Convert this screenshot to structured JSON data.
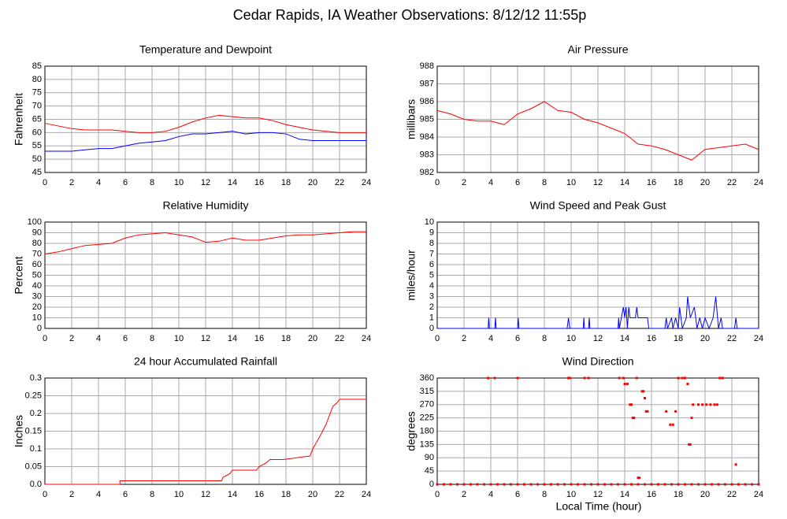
{
  "title": "Cedar Rapids, IA Weather Observations: 8/12/12 11:55p",
  "xlabel": "Local Time (hour)",
  "chart_data": [
    {
      "type": "line",
      "title": "Temperature and Dewpoint",
      "ylabel": "Fahrenheit",
      "xlim": [
        0,
        24
      ],
      "xticks": [
        0,
        2,
        4,
        6,
        8,
        10,
        12,
        14,
        16,
        18,
        20,
        22,
        24
      ],
      "ylim": [
        45,
        85
      ],
      "yticks": [
        45,
        50,
        55,
        60,
        65,
        70,
        75,
        80,
        85
      ],
      "grid": true,
      "x": [
        0,
        1,
        2,
        3,
        4,
        5,
        6,
        7,
        8,
        9,
        10,
        11,
        12,
        13,
        14,
        15,
        16,
        17,
        18,
        19,
        20,
        21,
        22,
        23,
        24
      ],
      "series": [
        {
          "color": "#ff0000",
          "values": [
            63.5,
            62.5,
            61.5,
            61,
            61,
            61,
            60.5,
            60,
            60,
            60.5,
            62,
            64,
            65.5,
            66.5,
            66,
            65.5,
            65.5,
            64.5,
            63,
            62,
            61,
            60.5,
            60,
            60,
            60
          ]
        },
        {
          "color": "#0000ff",
          "values": [
            53,
            53,
            53,
            53.5,
            54,
            54,
            55,
            56,
            56.5,
            57,
            58.5,
            59.5,
            59.5,
            60,
            60.5,
            59.5,
            60,
            60,
            59.5,
            57.5,
            57,
            57,
            57,
            57,
            57
          ]
        }
      ]
    },
    {
      "type": "line",
      "title": "Air Pressure",
      "ylabel": "millibars",
      "xlim": [
        0,
        24
      ],
      "xticks": [
        0,
        2,
        4,
        6,
        8,
        10,
        12,
        14,
        16,
        18,
        20,
        22,
        24
      ],
      "ylim": [
        982,
        988
      ],
      "yticks": [
        982,
        983,
        984,
        985,
        986,
        987,
        988
      ],
      "grid": true,
      "x": [
        0,
        1,
        2,
        3,
        4,
        5,
        6,
        7,
        8,
        9,
        10,
        11,
        12,
        13,
        14,
        15,
        16,
        17,
        18,
        19,
        20,
        21,
        22,
        23,
        24
      ],
      "series": [
        {
          "color": "#ff0000",
          "values": [
            985.5,
            985.3,
            985,
            984.9,
            984.9,
            984.7,
            985.3,
            985.6,
            986,
            985.5,
            985.4,
            985,
            984.8,
            984.5,
            984.2,
            983.6,
            983.5,
            983.3,
            983,
            982.7,
            983.3,
            983.4,
            983.5,
            983.6,
            983.3
          ]
        }
      ]
    },
    {
      "type": "line",
      "title": "Relative Humidity",
      "ylabel": "Percent",
      "xlim": [
        0,
        24
      ],
      "xticks": [
        0,
        2,
        4,
        6,
        8,
        10,
        12,
        14,
        16,
        18,
        20,
        22,
        24
      ],
      "ylim": [
        0,
        100
      ],
      "yticks": [
        0,
        10,
        20,
        30,
        40,
        50,
        60,
        70,
        80,
        90,
        100
      ],
      "grid": true,
      "x": [
        0,
        1,
        2,
        3,
        4,
        5,
        6,
        7,
        8,
        9,
        10,
        11,
        12,
        13,
        14,
        15,
        16,
        17,
        18,
        19,
        20,
        21,
        22,
        23,
        24
      ],
      "series": [
        {
          "color": "#ff0000",
          "values": [
            70,
            72,
            75,
            78,
            79,
            80,
            85,
            88,
            89,
            90,
            88,
            86,
            81,
            82,
            85,
            83,
            83,
            85,
            87,
            88,
            88,
            89,
            90,
            91,
            91
          ]
        }
      ]
    },
    {
      "type": "line",
      "title": "Wind Speed and Peak Gust",
      "ylabel": "miles/hour",
      "xlim": [
        0,
        24
      ],
      "xticks": [
        0,
        2,
        4,
        6,
        8,
        10,
        12,
        14,
        16,
        18,
        20,
        22,
        24
      ],
      "ylim": [
        0,
        10
      ],
      "yticks": [
        0,
        1,
        2,
        3,
        4,
        5,
        6,
        7,
        8,
        9,
        10
      ],
      "grid": true,
      "x": [
        0,
        3.8,
        3.85,
        3.9,
        4.3,
        4.35,
        4.4,
        6,
        6.05,
        6.1,
        9.7,
        9.8,
        9.9,
        10.9,
        10.95,
        11,
        11.3,
        11.35,
        11.4,
        13.5,
        13.55,
        13.6,
        13.9,
        14,
        14.1,
        14.2,
        14.3,
        14.4,
        14.8,
        14.9,
        15,
        15.7,
        15.8,
        17,
        17.1,
        17.2,
        17.5,
        17.6,
        17.8,
        18,
        18.1,
        18.3,
        18.6,
        18.7,
        18.9,
        19.2,
        19.4,
        19.6,
        19.8,
        20,
        20.3,
        20.6,
        20.8,
        21,
        21.2,
        21.3,
        22.2,
        22.3,
        22.4,
        24
      ],
      "series": [
        {
          "color": "#0000ff",
          "values": [
            0,
            0,
            1,
            0,
            0,
            1,
            0,
            0,
            1,
            0,
            0,
            1,
            0,
            0,
            1,
            0,
            0,
            1,
            0,
            0,
            1,
            0,
            2,
            1,
            2,
            0,
            2,
            1,
            1,
            2,
            1,
            1,
            0,
            0,
            1,
            0,
            1,
            0,
            1,
            0,
            2,
            0,
            1,
            3,
            1,
            2,
            0,
            1,
            0,
            1,
            0,
            1,
            3,
            0,
            1,
            0,
            0,
            1,
            0,
            0
          ]
        }
      ]
    },
    {
      "type": "line",
      "title": "24 hour Accumulated Rainfall",
      "ylabel": "Inches",
      "xlim": [
        0,
        24
      ],
      "xticks": [
        0,
        2,
        4,
        6,
        8,
        10,
        12,
        14,
        16,
        18,
        20,
        22,
        24
      ],
      "ylim": [
        0,
        0.3
      ],
      "yticks": [
        {
          "value": 0,
          "label": "0.0"
        },
        0.05,
        0.1,
        0.15,
        0.2,
        0.25,
        0.3
      ],
      "grid": true,
      "x": [
        0,
        5.6,
        5.6,
        13.2,
        13.3,
        13.8,
        14,
        15.8,
        16,
        16.5,
        16.8,
        17.8,
        19.8,
        20,
        20.3,
        20.6,
        21,
        21.3,
        21.5,
        21.8,
        22,
        24
      ],
      "series": [
        {
          "color": "#ff0000",
          "values": [
            0,
            0,
            0.01,
            0.01,
            0.02,
            0.03,
            0.04,
            0.04,
            0.05,
            0.06,
            0.07,
            0.07,
            0.08,
            0.1,
            0.12,
            0.14,
            0.17,
            0.2,
            0.22,
            0.23,
            0.24,
            0.24
          ]
        }
      ]
    },
    {
      "type": "scatter",
      "title": "Wind Direction",
      "ylabel": "degrees",
      "xlim": [
        0,
        24
      ],
      "xticks": [
        0,
        2,
        4,
        6,
        8,
        10,
        12,
        14,
        16,
        18,
        20,
        22,
        24
      ],
      "ylim": [
        0,
        360
      ],
      "yticks": [
        0,
        45,
        90,
        135,
        180,
        225,
        270,
        315,
        360
      ],
      "grid": true,
      "x": [
        0,
        0.5,
        1,
        1.5,
        2,
        2.5,
        3,
        3.5,
        4,
        4.5,
        5,
        5.5,
        6,
        6.5,
        7,
        7.5,
        8,
        8.5,
        9,
        9.5,
        10,
        10.5,
        11,
        11.5,
        12,
        12.5,
        13,
        13.5,
        14,
        14.5,
        15,
        15.5,
        16,
        16.5,
        17,
        17.5,
        18,
        18.5,
        19,
        19.5,
        20,
        20.5,
        21,
        21.5,
        22,
        22.5,
        23,
        23.5,
        24,
        3.8,
        4.3,
        6,
        9.8,
        9.9,
        11,
        11.3,
        13.6,
        13.9,
        14,
        14.2,
        14.4,
        14.5,
        14.6,
        14.7,
        14.9,
        15,
        15.1,
        15.3,
        15.4,
        15.5,
        15.6,
        15.7,
        17.1,
        17.4,
        17.6,
        17.8,
        18,
        18.3,
        18.5,
        18.7,
        18.8,
        18.9,
        19,
        19.1,
        19.5,
        19.8,
        20.1,
        20.4,
        20.7,
        20.9,
        21.1,
        21.3,
        22.3
      ],
      "series": [
        {
          "color": "#ff0000",
          "values": [
            0,
            0,
            0,
            0,
            0,
            0,
            0,
            0,
            0,
            0,
            0,
            0,
            0,
            0,
            0,
            0,
            0,
            0,
            0,
            0,
            0,
            0,
            0,
            0,
            0,
            0,
            0,
            0,
            0,
            0,
            0,
            0,
            0,
            0,
            0,
            0,
            0,
            0,
            0,
            0,
            0,
            0,
            0,
            0,
            0,
            0,
            0,
            0,
            0,
            360,
            360,
            360,
            360,
            360,
            360,
            360,
            360,
            360,
            340,
            340,
            270,
            270,
            225,
            225,
            360,
            22,
            22,
            315,
            315,
            292,
            247,
            247,
            247,
            202,
            202,
            247,
            360,
            360,
            360,
            340,
            135,
            135,
            225,
            270,
            270,
            270,
            270,
            270,
            270,
            270,
            360,
            360,
            67
          ]
        }
      ]
    }
  ]
}
